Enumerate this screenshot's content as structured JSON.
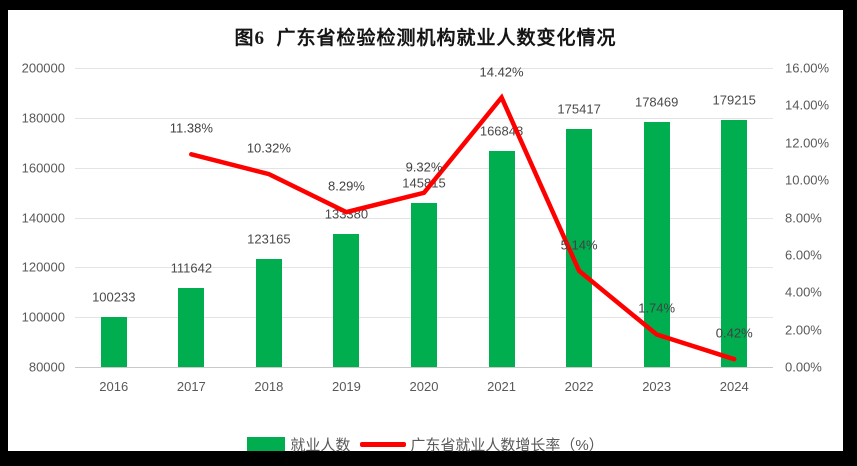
{
  "title": "图6  广东省检验检测机构就业人数变化情况",
  "colors": {
    "frame": "#000000",
    "panel": "#ffffff",
    "bar": "#00ae50",
    "line": "#fe0000",
    "grid": "#e4e4e4",
    "axis_line": "#c9c9c9",
    "axis_text": "#595959",
    "label_text": "#454545"
  },
  "legend": {
    "bar_label": "就业人数",
    "line_label": "广东省就业人数增长率（%）"
  },
  "chart_data": {
    "type": "bar+line combo",
    "title": "图6  广东省检验检测机构就业人数变化情况",
    "categories": [
      "2016",
      "2017",
      "2018",
      "2019",
      "2020",
      "2021",
      "2022",
      "2023",
      "2024"
    ],
    "series": [
      {
        "name": "就业人数",
        "type": "bar",
        "axis": "left",
        "values": [
          100233,
          111642,
          123165,
          133380,
          145815,
          166848,
          175417,
          178469,
          179215
        ],
        "labels": [
          "100233",
          "111642",
          "123165",
          "133380",
          "145815",
          "166848",
          "175417",
          "178469",
          "179215"
        ]
      },
      {
        "name": "广东省就业人数增长率（%）",
        "type": "line",
        "axis": "right",
        "values": [
          null,
          11.38,
          10.32,
          8.29,
          9.32,
          14.42,
          5.14,
          1.74,
          0.42
        ],
        "labels": [
          null,
          "11.38%",
          "10.32%",
          "8.29%",
          "9.32%",
          "14.42%",
          "5.14%",
          "1.74%",
          "0.42%"
        ]
      }
    ],
    "left_axis": {
      "min": 80000,
      "max": 200000,
      "step": 20000,
      "ticks": [
        "80000",
        "100000",
        "120000",
        "140000",
        "160000",
        "180000",
        "200000"
      ]
    },
    "right_axis": {
      "min": 0,
      "max": 16,
      "step": 2,
      "ticks": [
        "0.00%",
        "2.00%",
        "4.00%",
        "6.00%",
        "8.00%",
        "10.00%",
        "12.00%",
        "14.00%",
        "16.00%"
      ]
    },
    "grid": true,
    "legend_position": "bottom"
  }
}
